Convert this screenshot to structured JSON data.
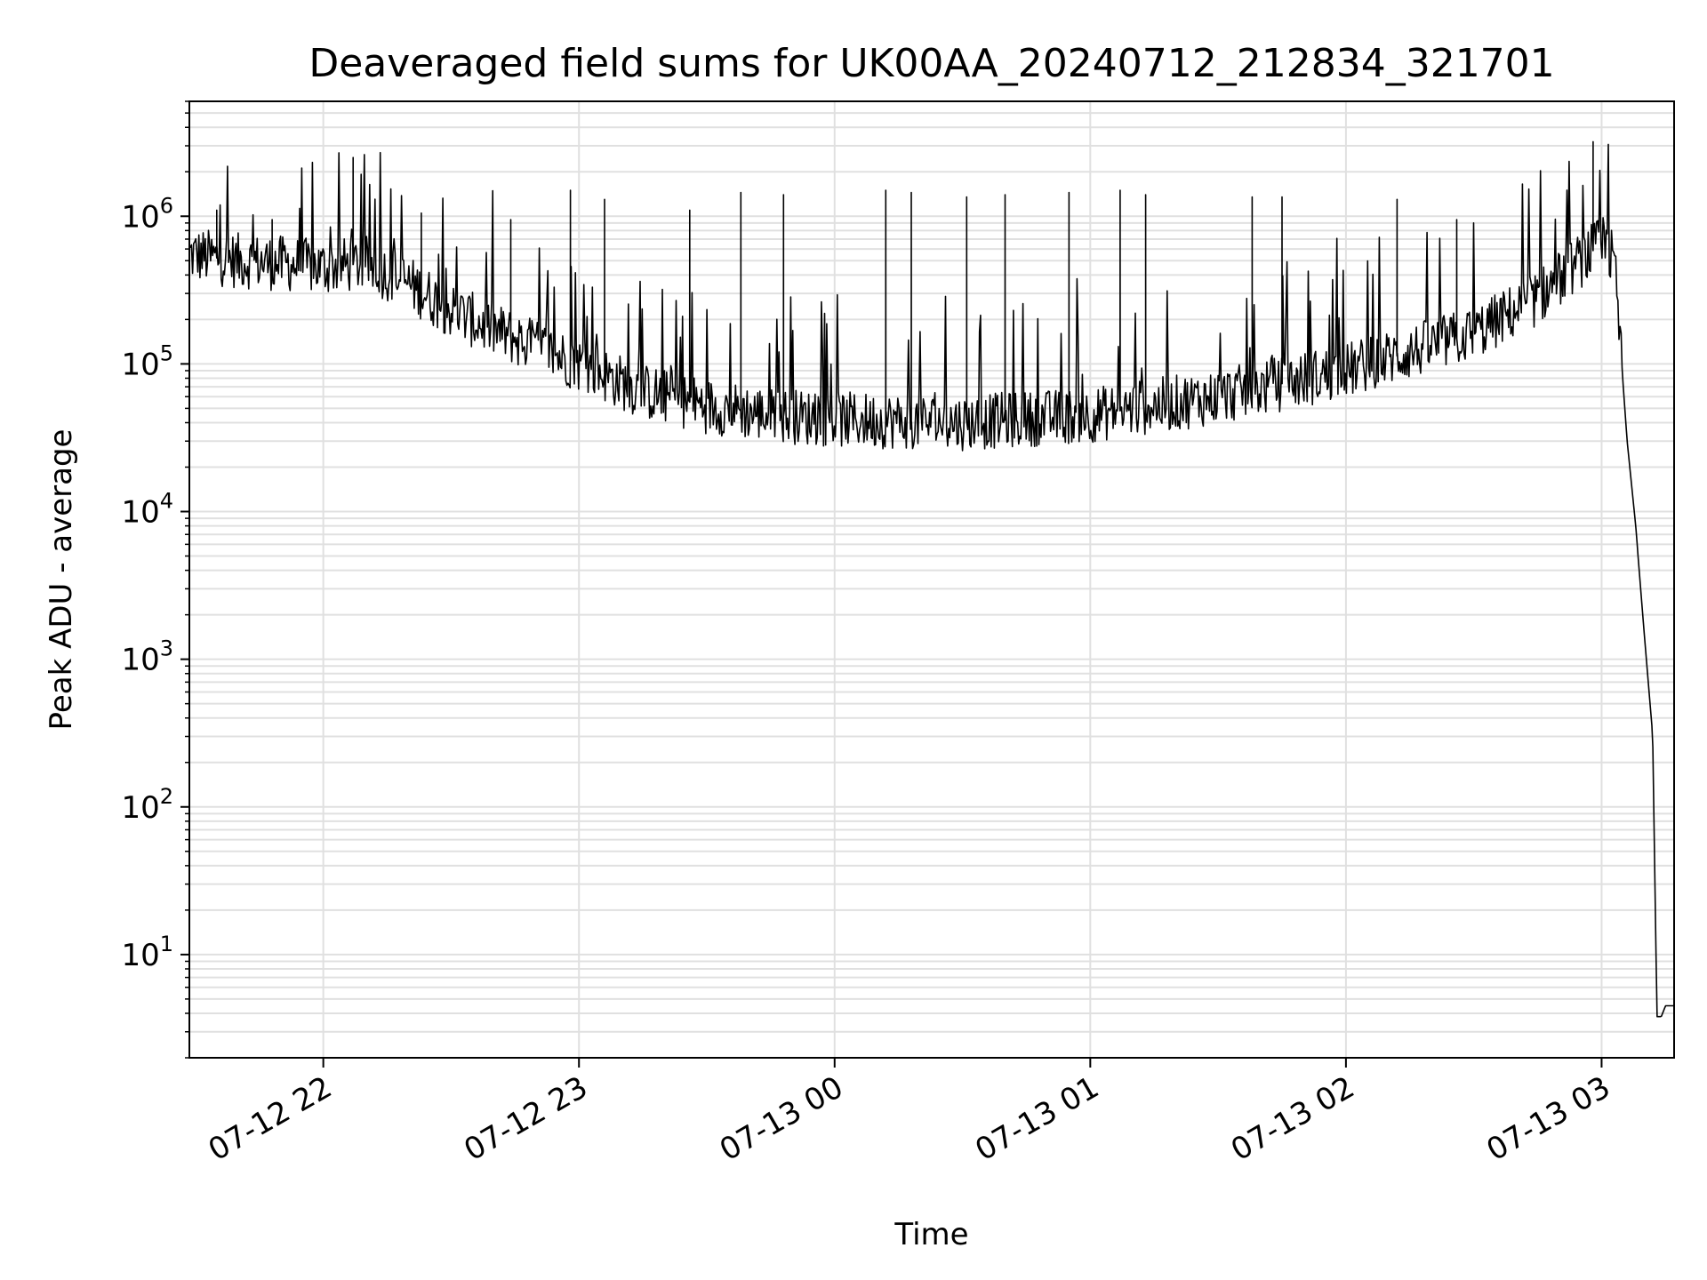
{
  "chart_data": {
    "type": "line",
    "title": "Deaveraged field sums for UK00AA_20240712_212834_321701",
    "xlabel": "Time",
    "ylabel": "Peak ADU - average",
    "y_scale": "log",
    "ylim": [
      2,
      6000000
    ],
    "xlim": [
      "2024-07-12 21:28:34",
      "2024-07-13 03:17:01"
    ],
    "grid": true,
    "legend": "none",
    "line_color": "#000000",
    "grid_color": "#e0e0e0",
    "x_ticks": [
      {
        "t": "2024-07-12 22:00",
        "label": "07-12 22"
      },
      {
        "t": "2024-07-12 23:00",
        "label": "07-12 23"
      },
      {
        "t": "2024-07-13 00:00",
        "label": "07-13 00"
      },
      {
        "t": "2024-07-13 01:00",
        "label": "07-13 01"
      },
      {
        "t": "2024-07-13 02:00",
        "label": "07-13 02"
      },
      {
        "t": "2024-07-13 03:00",
        "label": "07-13 03"
      }
    ],
    "y_ticks": [
      {
        "value": 10,
        "base": "10",
        "exp": "1"
      },
      {
        "value": 100,
        "base": "10",
        "exp": "2"
      },
      {
        "value": 1000,
        "base": "10",
        "exp": "3"
      },
      {
        "value": 10000,
        "base": "10",
        "exp": "4"
      },
      {
        "value": 100000,
        "base": "10",
        "exp": "5"
      },
      {
        "value": 1000000,
        "base": "10",
        "exp": "6"
      }
    ],
    "series": [
      {
        "x": [
          "2024-07-12 21:28:34",
          "2024-07-12 21:40",
          "2024-07-12 21:50",
          "2024-07-12 22:00",
          "2024-07-12 22:10",
          "2024-07-12 22:20",
          "2024-07-12 22:30",
          "2024-07-12 22:40",
          "2024-07-12 22:50",
          "2024-07-12 23:00",
          "2024-07-12 23:15",
          "2024-07-12 23:30",
          "2024-07-12 23:45",
          "2024-07-13 00:00",
          "2024-07-13 00:30",
          "2024-07-13 01:00",
          "2024-07-13 01:30",
          "2024-07-13 02:00",
          "2024-07-13 02:15",
          "2024-07-13 02:30",
          "2024-07-13 02:45",
          "2024-07-13 02:55",
          "2024-07-13 03:00",
          "2024-07-13 03:03",
          "2024-07-13 03:06",
          "2024-07-13 03:08",
          "2024-07-13 03:10",
          "2024-07-13 03:12",
          "2024-07-13 03:13",
          "2024-07-13 03:14",
          "2024-07-13 03:15",
          "2024-07-13 03:17:01"
        ],
        "y": [
          550000,
          500000,
          480000,
          450000,
          480000,
          350000,
          230000,
          170000,
          130000,
          100000,
          65000,
          52000,
          45000,
          42000,
          40000,
          45000,
          60000,
          90000,
          120000,
          160000,
          280000,
          500000,
          650000,
          500000,
          30000,
          8000,
          1500,
          300,
          3.8,
          3.8,
          4.5,
          4.5
        ]
      }
    ],
    "spikes": [
      {
        "t": "2024-07-12 21:35",
        "y": 1100000
      },
      {
        "t": "2024-07-12 21:48",
        "y": 950000
      },
      {
        "t": "2024-07-12 22:07",
        "y": 2500000
      },
      {
        "t": "2024-07-12 22:23",
        "y": 1050000
      },
      {
        "t": "2024-07-12 22:44",
        "y": 950000
      },
      {
        "t": "2024-07-12 22:58",
        "y": 1500000
      },
      {
        "t": "2024-07-12 23:06",
        "y": 1300000
      },
      {
        "t": "2024-07-12 23:26",
        "y": 1100000
      },
      {
        "t": "2024-07-12 23:38",
        "y": 1450000
      },
      {
        "t": "2024-07-12 23:48",
        "y": 1400000
      },
      {
        "t": "2024-07-13 00:12",
        "y": 1500000
      },
      {
        "t": "2024-07-13 00:18",
        "y": 1450000
      },
      {
        "t": "2024-07-13 00:31",
        "y": 1350000
      },
      {
        "t": "2024-07-13 00:40",
        "y": 1400000
      },
      {
        "t": "2024-07-13 00:55",
        "y": 1450000
      },
      {
        "t": "2024-07-13 01:07",
        "y": 1500000
      },
      {
        "t": "2024-07-13 01:13",
        "y": 1400000
      },
      {
        "t": "2024-07-13 01:38",
        "y": 1350000
      },
      {
        "t": "2024-07-13 01:45",
        "y": 1350000
      },
      {
        "t": "2024-07-13 02:12",
        "y": 1300000
      },
      {
        "t": "2024-07-13 02:26",
        "y": 950000
      },
      {
        "t": "2024-07-13 02:58",
        "y": 3200000
      }
    ]
  }
}
